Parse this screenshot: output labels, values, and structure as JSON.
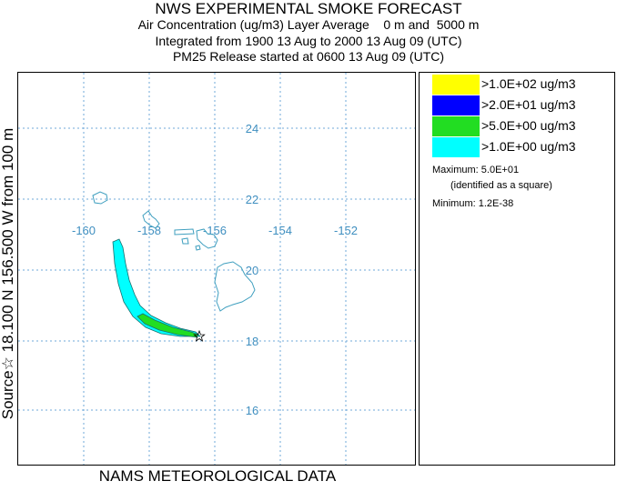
{
  "header": {
    "title": "NWS EXPERIMENTAL SMOKE FORECAST",
    "line2": "Air Concentration (ug/m3) Layer Average    0 m and  5000 m",
    "line3": "Integrated from 1900 13 Aug to 2000 13 Aug 09 (UTC)",
    "line4": "PM25 Release started at 0600 13 Aug 09 (UTC)"
  },
  "footer": {
    "label": "NAMS METEOROLOGICAL DATA"
  },
  "side_label": "Source☆ 18.100  N 156.500  W    from  100 m",
  "map": {
    "lon_ticks": [
      "-160",
      "-158",
      "-156",
      "-154",
      "-152"
    ],
    "lat_ticks": [
      "24",
      "22",
      "20",
      "18",
      "16"
    ],
    "grid_color": "#6fa8d8",
    "label_color": "#3f8fc0",
    "coast_color": "#3f9fbf",
    "source_marker": "star-icon"
  },
  "legend": {
    "items": [
      {
        "label": ">1.0E+02 ug/m3",
        "color": "#ffff00"
      },
      {
        "label": ">2.0E+01 ug/m3",
        "color": "#0000ff"
      },
      {
        "label": ">5.0E+00 ug/m3",
        "color": "#22dd22"
      },
      {
        "label": ">1.0E+00 ug/m3",
        "color": "#00ffff"
      }
    ],
    "maximum": "Maximum: 5.0E+01",
    "maximum_note": "(identified as a square)",
    "minimum": "Minimum: 1.2E-38"
  }
}
